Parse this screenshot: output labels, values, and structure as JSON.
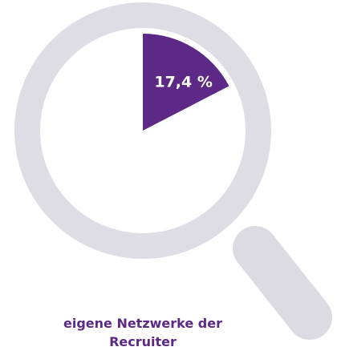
{
  "chart_data": {
    "type": "pie",
    "categories": [
      "eigene Netzwerke der Recruiter"
    ],
    "values": [
      17.4
    ],
    "value_labels": [
      "17,4 %"
    ],
    "color": "#5c2a86"
  }
}
